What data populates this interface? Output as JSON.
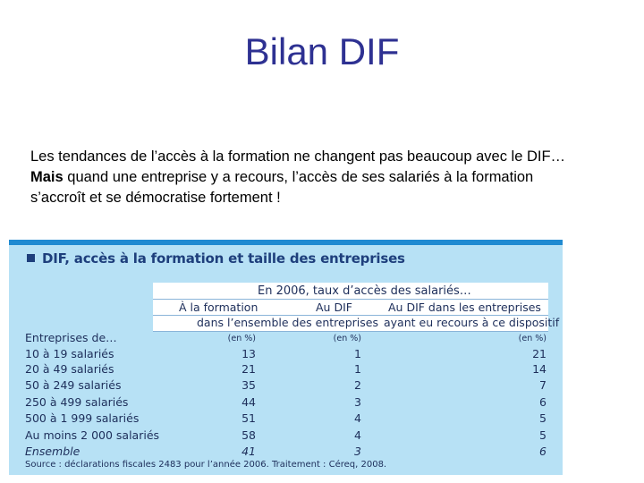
{
  "slide": {
    "title": "Bilan DIF",
    "intro_line1": "Les tendances de l’accès à la formation ne changent pas beaucoup avec le DIF…",
    "intro_bold": "Mais",
    "intro_line2_rest": " quand une entreprise y a recours, l’accès de ses salariés à la formation",
    "intro_line3": "s’accroît et se démocratise fortement !"
  },
  "table": {
    "title": "DIF, accès à la formation et taille des entreprises",
    "group_header": "En 2006, taux d’accès des salariés…",
    "col1_header": "À la formation",
    "col2_header": "Au DIF",
    "col3_header_line1": "Au DIF dans les entreprises",
    "col3_header_line2": "ayant eu recours à ce dispositif",
    "col12_subheader": "dans l’ensemble des entreprises",
    "row_header": "Entreprises de…",
    "unit": "(en %)",
    "rows": [
      {
        "label": "10 à 19 salariés",
        "c1": "13",
        "c2": "1",
        "c3": "21"
      },
      {
        "label": "20 à 49 salariés",
        "c1": "21",
        "c2": "1",
        "c3": "14"
      },
      {
        "label": "50 à 249 salariés",
        "c1": "35",
        "c2": "2",
        "c3": "7"
      },
      {
        "label": "250 à 499 salariés",
        "c1": "44",
        "c2": "3",
        "c3": "6"
      },
      {
        "label": "500 à 1 999 salariés",
        "c1": "51",
        "c2": "4",
        "c3": "5"
      },
      {
        "label": "Au moins 2 000 salariés",
        "c1": "58",
        "c2": "4",
        "c3": "5"
      },
      {
        "label": "Ensemble",
        "c1": "41",
        "c2": "3",
        "c3": "6"
      }
    ],
    "source": "Source : déclarations fiscales 2483 pour l’année 2006. Traitement : Céreq, 2008."
  },
  "colors": {
    "title": "#2e3192",
    "panel_bg": "#b7e1f5",
    "panel_bar": "#1f8ad1",
    "table_text": "#1d2e5a"
  }
}
